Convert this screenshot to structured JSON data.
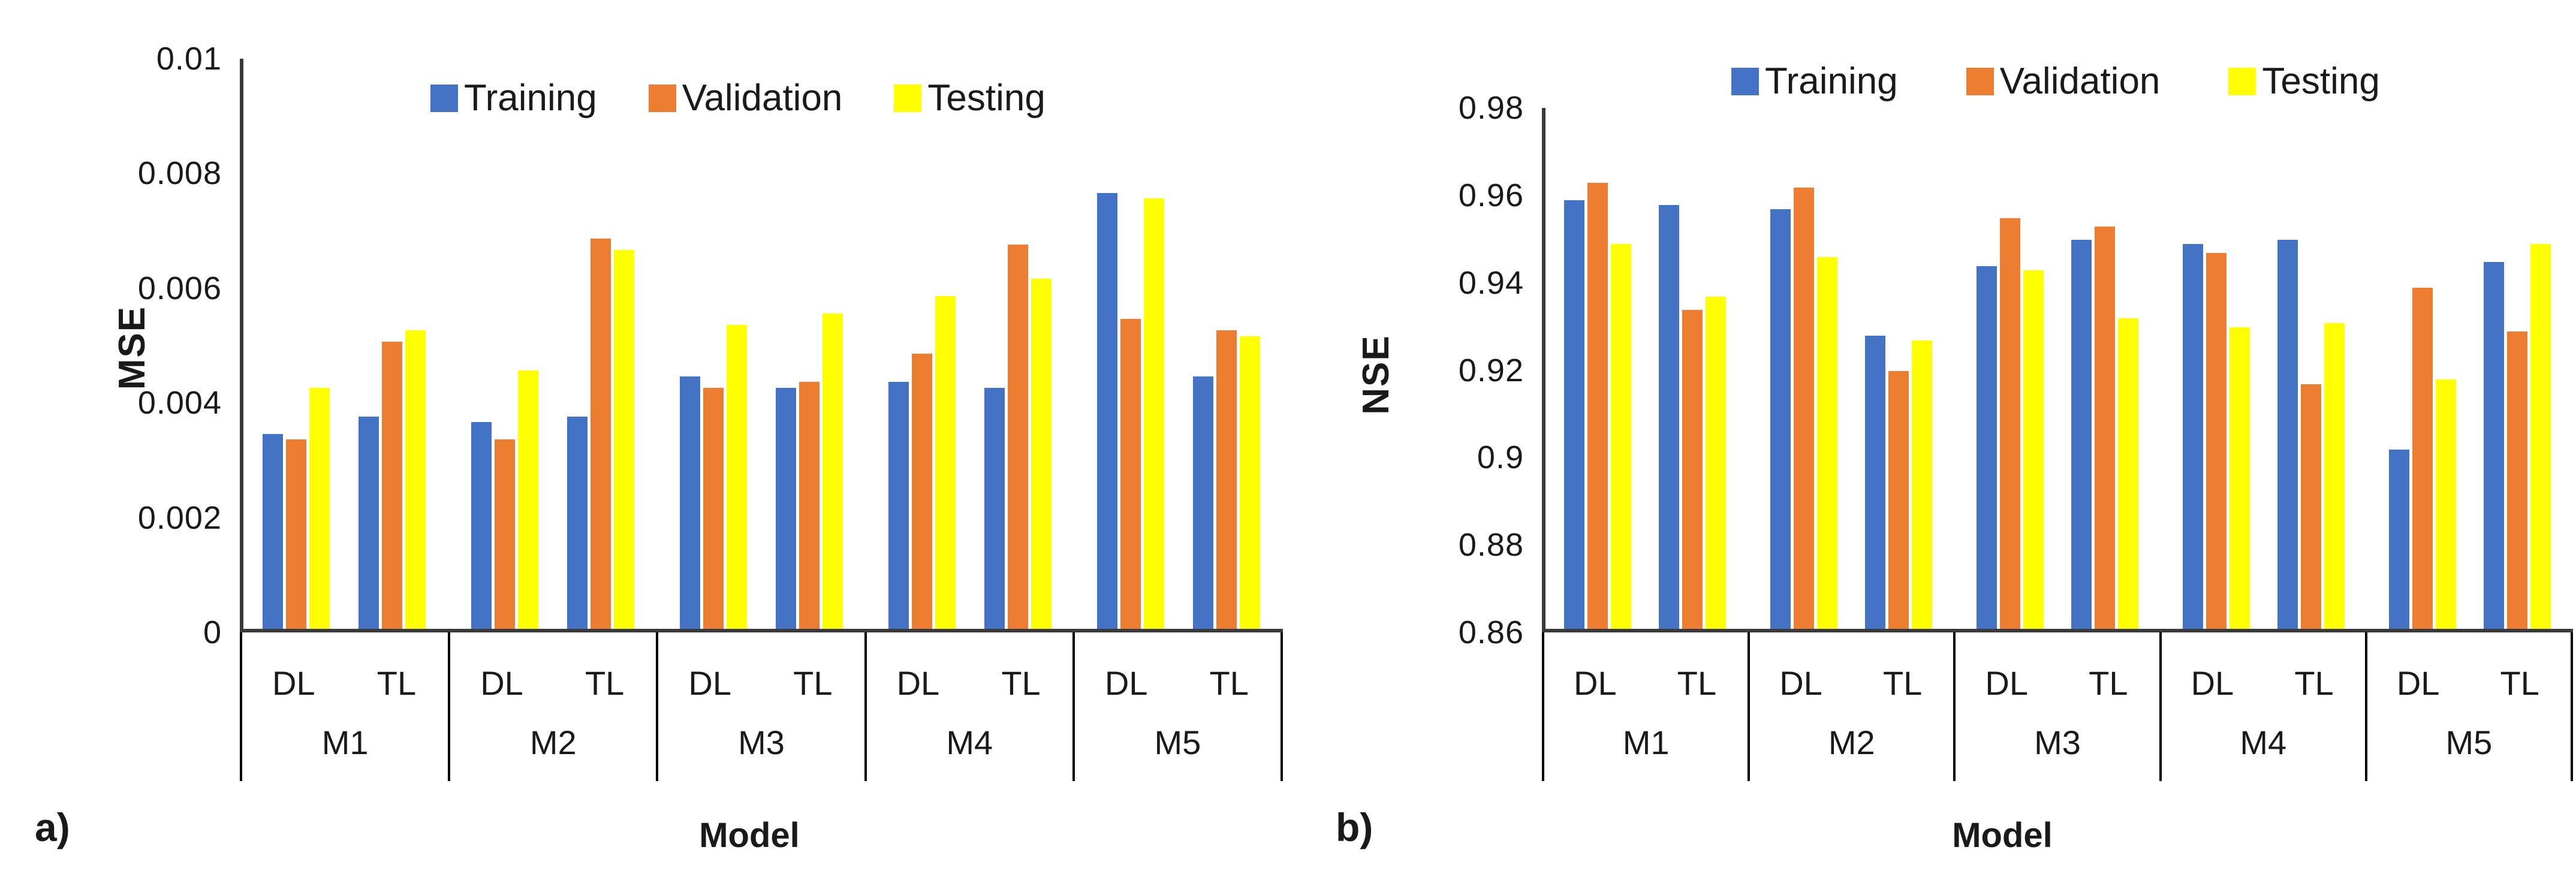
{
  "figure": {
    "background": "#ffffff",
    "axis_line_color": "#3a3a3a",
    "table_line_color": "#000000",
    "text_color": "#1a1a1a"
  },
  "chart_data": [
    {
      "type": "bar",
      "panel_label": "a)",
      "ylabel": "MSE",
      "xlabel": "Model",
      "ylim": [
        0,
        0.01
      ],
      "grid": false,
      "legend_position": "top",
      "yticks": [
        {
          "label": "0.01",
          "value": 0.01
        },
        {
          "label": "0.008",
          "value": 0.008
        },
        {
          "label": "0.006",
          "value": 0.006
        },
        {
          "label": "0.004",
          "value": 0.004
        },
        {
          "label": "0.002",
          "value": 0.002
        },
        {
          "label": "0",
          "value": 0
        }
      ],
      "categories": [
        "M1",
        "M2",
        "M3",
        "M4",
        "M5"
      ],
      "subcategories": [
        "DL",
        "TL"
      ],
      "series": [
        {
          "name": "Training",
          "color": "#4472C4",
          "values": [
            [
              0.0034,
              0.0037
            ],
            [
              0.0036,
              0.0037
            ],
            [
              0.0044,
              0.0042
            ],
            [
              0.0043,
              0.0042
            ],
            [
              0.0076,
              0.0044
            ]
          ]
        },
        {
          "name": "Validation",
          "color": "#ED7D31",
          "values": [
            [
              0.0033,
              0.005
            ],
            [
              0.0033,
              0.0068
            ],
            [
              0.0042,
              0.0043
            ],
            [
              0.0048,
              0.0067
            ],
            [
              0.0054,
              0.0052
            ]
          ]
        },
        {
          "name": "Testing",
          "color": "#FFFF00",
          "values": [
            [
              0.0042,
              0.0052
            ],
            [
              0.0045,
              0.0066
            ],
            [
              0.0053,
              0.0055
            ],
            [
              0.0058,
              0.0061
            ],
            [
              0.0075,
              0.0051
            ]
          ]
        }
      ]
    },
    {
      "type": "bar",
      "panel_label": "b)",
      "ylabel": "NSE",
      "xlabel": "Model",
      "ylim": [
        0.86,
        0.98
      ],
      "grid": false,
      "legend_position": "top",
      "yticks": [
        {
          "label": "0.98",
          "value": 0.98
        },
        {
          "label": "0.96",
          "value": 0.96
        },
        {
          "label": "0.94",
          "value": 0.94
        },
        {
          "label": "0.92",
          "value": 0.92
        },
        {
          "label": "0.9",
          "value": 0.9
        },
        {
          "label": "0.88",
          "value": 0.88
        },
        {
          "label": "0.86",
          "value": 0.86
        }
      ],
      "categories": [
        "M1",
        "M2",
        "M3",
        "M4",
        "M5"
      ],
      "subcategories": [
        "DL",
        "TL"
      ],
      "series": [
        {
          "name": "Training",
          "color": "#4472C4",
          "values": [
            [
              0.958,
              0.957
            ],
            [
              0.956,
              0.927
            ],
            [
              0.943,
              0.949
            ],
            [
              0.948,
              0.949
            ],
            [
              0.901,
              0.944
            ]
          ]
        },
        {
          "name": "Validation",
          "color": "#ED7D31",
          "values": [
            [
              0.962,
              0.933
            ],
            [
              0.961,
              0.919
            ],
            [
              0.954,
              0.952
            ],
            [
              0.946,
              0.916
            ],
            [
              0.938,
              0.928
            ]
          ]
        },
        {
          "name": "Testing",
          "color": "#FFFF00",
          "values": [
            [
              0.948,
              0.936
            ],
            [
              0.945,
              0.926
            ],
            [
              0.942,
              0.931
            ],
            [
              0.929,
              0.93
            ],
            [
              0.917,
              0.948
            ]
          ]
        }
      ]
    }
  ]
}
